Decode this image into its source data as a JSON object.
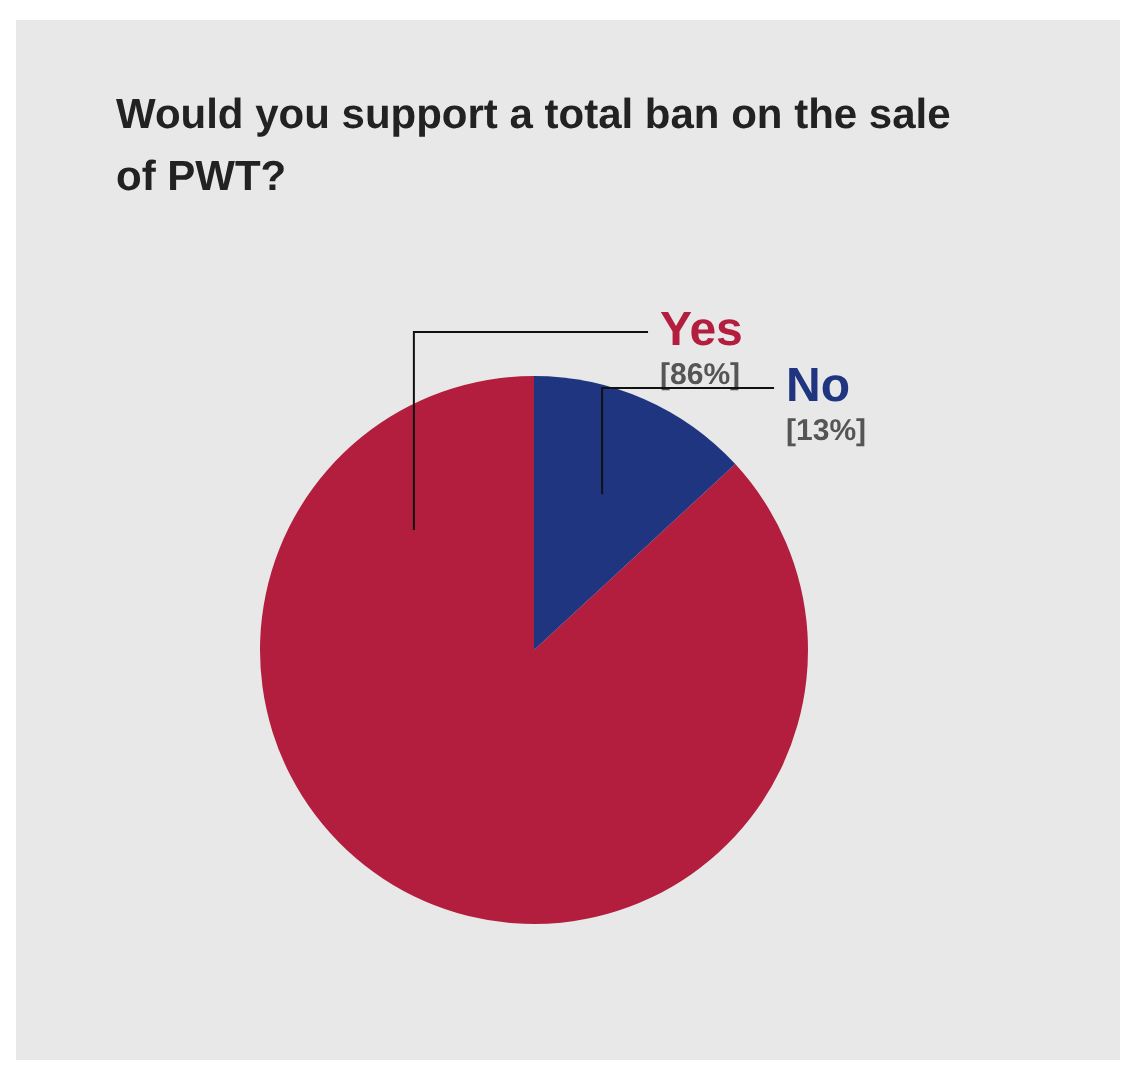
{
  "chart_data": {
    "type": "pie",
    "title": "Would you support a total ban on the sale of PWT?",
    "categories": [
      "Yes",
      "No"
    ],
    "values": [
      86,
      13
    ],
    "value_labels": [
      "[86%]",
      "[13%]"
    ],
    "colors": [
      "#b31e3e",
      "#1f3580"
    ],
    "legend": false
  }
}
